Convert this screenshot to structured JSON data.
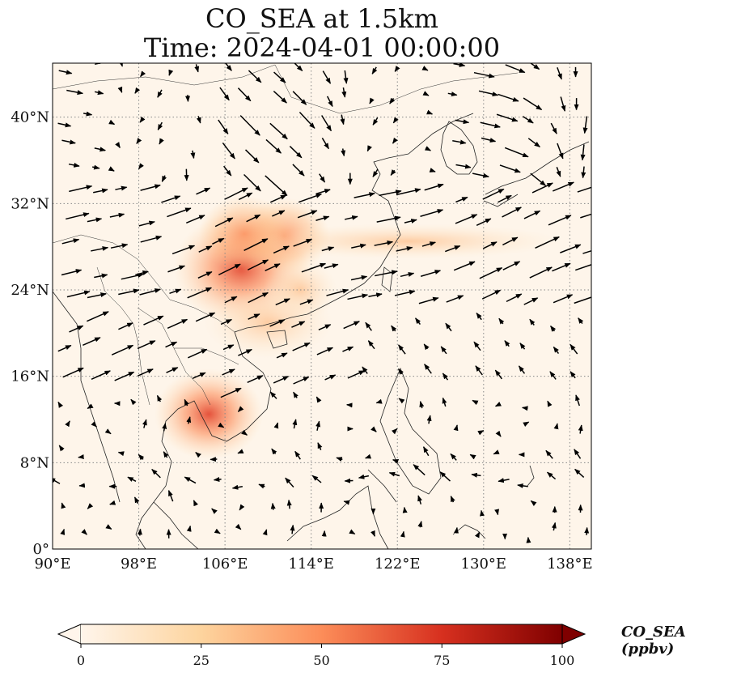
{
  "title": {
    "line1": "CO_SEA at 1.5km",
    "line2": "Time: 2024-04-01 00:00:00"
  },
  "map": {
    "lon_range": [
      90,
      140
    ],
    "lat_range": [
      0,
      45
    ],
    "lon_ticks": [
      "90°E",
      "98°E",
      "106°E",
      "114°E",
      "122°E",
      "130°E",
      "138°E"
    ],
    "lat_ticks": [
      "0°",
      "8°N",
      "16°N",
      "24°N",
      "32°N",
      "40°N"
    ],
    "gridlines": true
  },
  "colorbar": {
    "label": "CO_SEA (ppbv)",
    "min": 0,
    "max": 100,
    "ticks": [
      "0",
      "25",
      "50",
      "75",
      "100"
    ],
    "extend": "both",
    "colors": [
      "#fff5eb",
      "#fdd49e",
      "#fc8d59",
      "#d7301f",
      "#7f0000"
    ]
  },
  "chart_data": {
    "type": "heatmap",
    "title": "CO_SEA at 1.5km",
    "subtitle": "Time: 2024-04-01 00:00:00",
    "variable": "CO_SEA",
    "units": "ppbv",
    "value_range": [
      0,
      100
    ],
    "hotspots": [
      {
        "lon": 104.5,
        "lat": 12.5,
        "value": 40
      },
      {
        "lon": 107.5,
        "lat": 26.0,
        "value": 55
      },
      {
        "lon": 111.5,
        "lat": 29.0,
        "value": 30
      },
      {
        "lon": 107.8,
        "lat": 29.2,
        "value": 30
      },
      {
        "lon": 113.0,
        "lat": 24.0,
        "value": 20
      }
    ]
  }
}
